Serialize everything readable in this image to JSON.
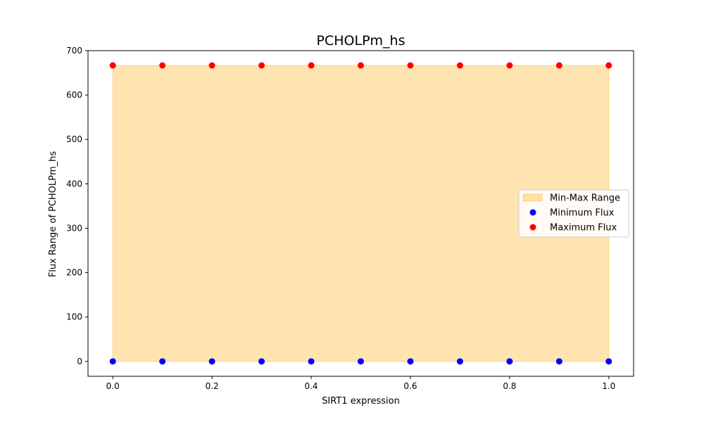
{
  "chart_data": {
    "type": "scatter",
    "title": "PCHOLPm_hs",
    "xlabel": "SIRT1 expression",
    "ylabel": "Flux Range of PCHOLPm_hs",
    "xlim": [
      -0.05,
      1.05
    ],
    "ylim": [
      -33.5,
      700
    ],
    "xticks": [
      0.0,
      0.2,
      0.4,
      0.6,
      0.8,
      1.0
    ],
    "xtick_labels": [
      "0.0",
      "0.2",
      "0.4",
      "0.6",
      "0.8",
      "1.0"
    ],
    "yticks": [
      0,
      100,
      200,
      300,
      400,
      500,
      600,
      700
    ],
    "ytick_labels": [
      "0",
      "100",
      "200",
      "300",
      "400",
      "500",
      "600",
      "700"
    ],
    "grid": false,
    "legend_placement": "center-right",
    "x": [
      0.0,
      0.1,
      0.2,
      0.3,
      0.4,
      0.5,
      0.6,
      0.7,
      0.8,
      0.9,
      1.0
    ],
    "series": [
      {
        "name": "Min-Max Range",
        "kind": "fill_between",
        "color": "#ffa500",
        "opacity": 0.3
      },
      {
        "name": "Minimum Flux",
        "kind": "scatter",
        "color": "#0000ff",
        "values": [
          0,
          0,
          0,
          0,
          0,
          0,
          0,
          0,
          0,
          0,
          0
        ]
      },
      {
        "name": "Maximum Flux",
        "kind": "scatter",
        "color": "#ff0000",
        "values": [
          666.67,
          666.67,
          666.67,
          666.67,
          666.67,
          666.67,
          666.67,
          666.67,
          666.67,
          666.67,
          666.67
        ]
      }
    ]
  }
}
